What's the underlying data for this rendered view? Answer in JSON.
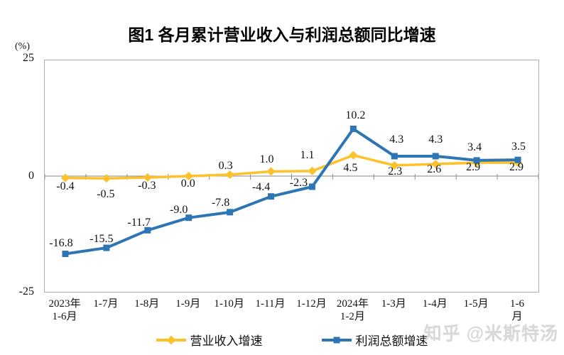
{
  "title": "图1  各月累计营业收入与利润总额同比增速",
  "y_axis": {
    "unit": "(%)",
    "tick_top": "25",
    "tick_zero": "0",
    "tick_bottom": "-25"
  },
  "chart_data": {
    "type": "line",
    "title": "图1  各月累计营业收入与利润总额同比增速",
    "ylabel": "(%)",
    "ylim": [
      -25,
      25
    ],
    "y_ticks": [
      25,
      0,
      -25
    ],
    "grid": false,
    "legend_position": "bottom",
    "categories": [
      "2023年\n1-6月",
      "1-7月",
      "1-8月",
      "1-9月",
      "1-10月",
      "1-11月",
      "1-12月",
      "2024年\n1-2月",
      "1-3月",
      "1-4月",
      "1-5月",
      "1-6月"
    ],
    "series": [
      {
        "name": "营业收入增速",
        "color": "#FDC12A",
        "marker": "diamond",
        "values": [
          -0.4,
          -0.5,
          -0.3,
          0.0,
          0.3,
          1.0,
          1.1,
          4.5,
          2.3,
          2.6,
          2.9,
          2.9
        ]
      },
      {
        "name": "利润总额增速",
        "color": "#2E75B6",
        "marker": "square",
        "values": [
          -16.8,
          -15.5,
          -11.7,
          -9.0,
          -7.8,
          -4.4,
          -2.3,
          10.2,
          4.3,
          4.3,
          3.4,
          3.5
        ]
      }
    ]
  },
  "axis_color": "#8a8a8a",
  "watermark": "知乎 @米斯特汤"
}
